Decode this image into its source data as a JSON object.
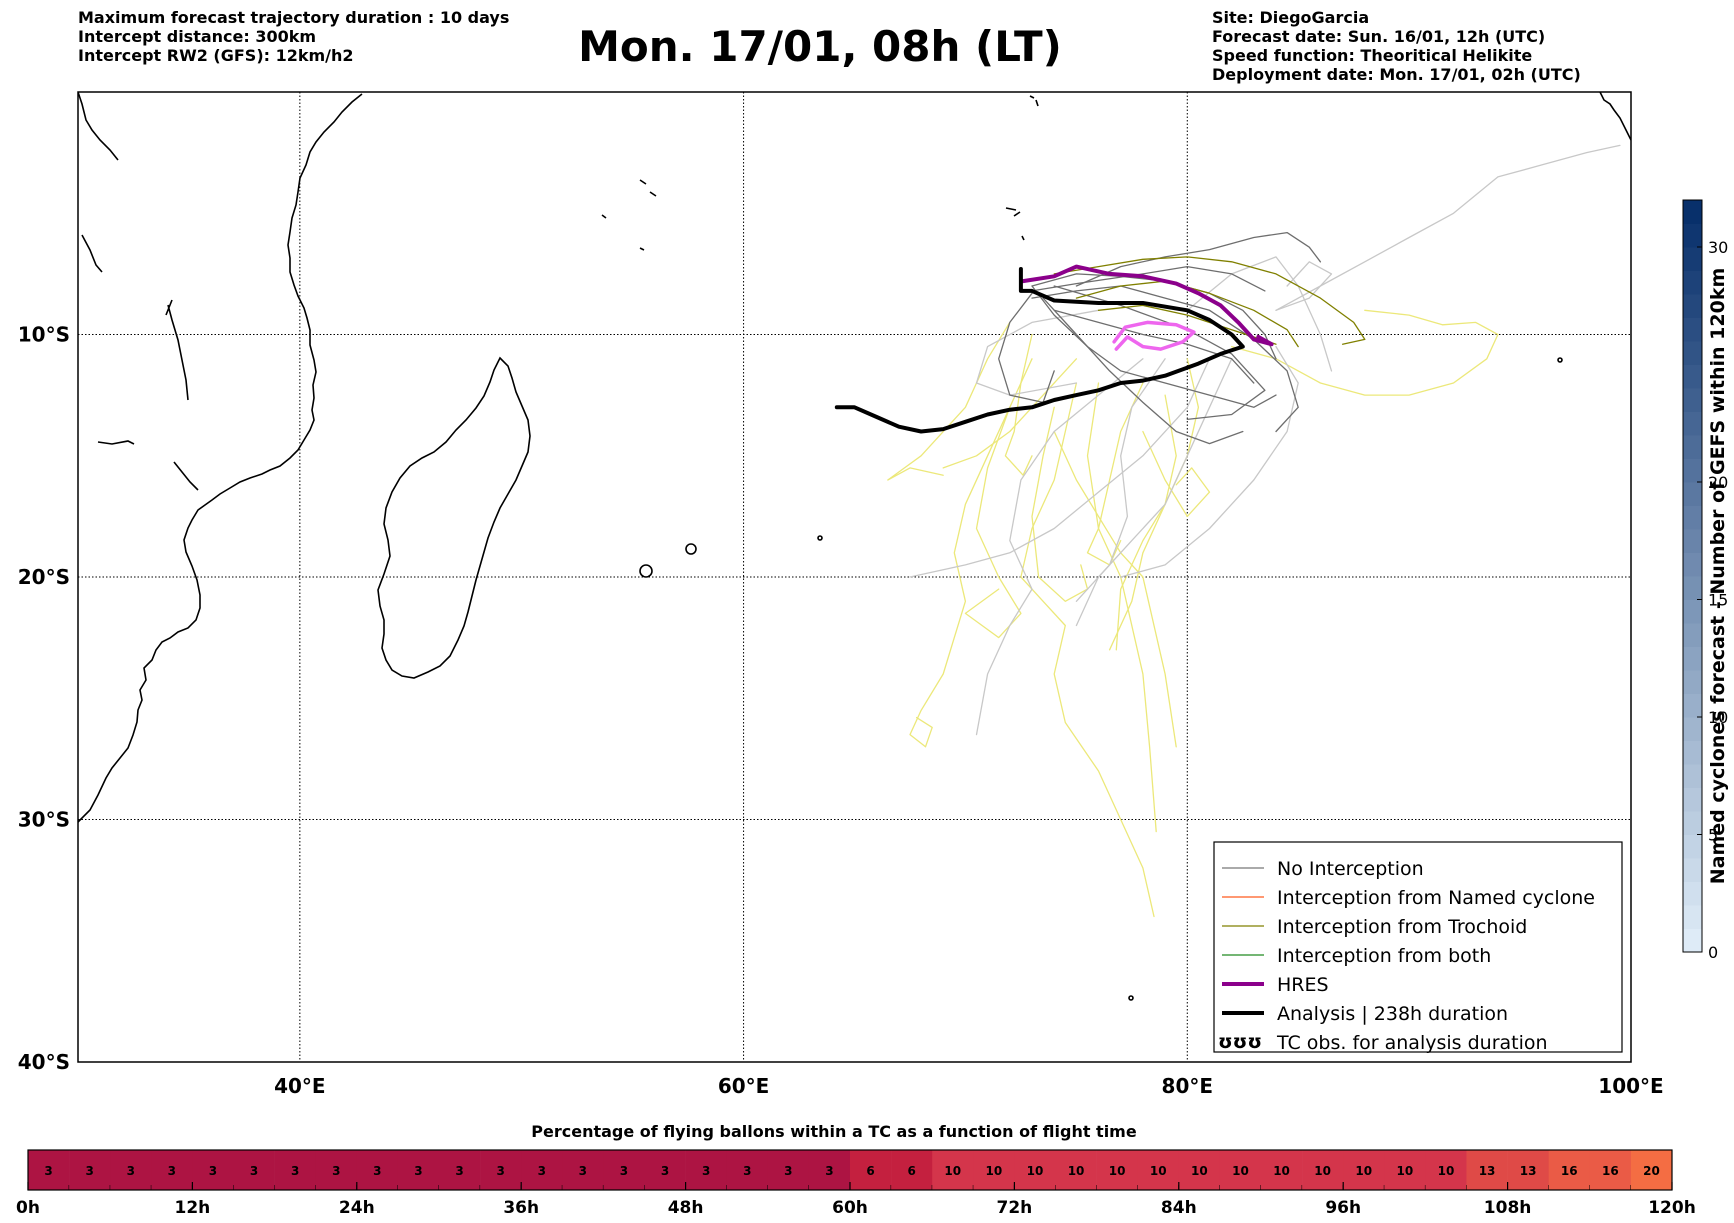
{
  "header": {
    "left_lines": [
      "Maximum forecast trajectory duration : 10 days",
      "Intercept distance: 300km",
      "Intercept RW2 (GFS):  12km/h2"
    ],
    "title": "Mon. 17/01, 08h (LT)",
    "right_lines": [
      "Site: DiegoGarcia",
      "Forecast date: Sun. 16/01, 12h (UTC)",
      "Speed function: Theoritical Helikite",
      "Deployment date: Mon. 17/01, 02h (UTC)"
    ]
  },
  "map": {
    "lon_range": [
      30,
      100
    ],
    "lat_range": [
      0,
      -40
    ],
    "lat_labels": [
      {
        "lat": -10,
        "text": "10°S"
      },
      {
        "lat": -20,
        "text": "20°S"
      },
      {
        "lat": -30,
        "text": "30°S"
      },
      {
        "lat": -40,
        "text": "40°S"
      }
    ],
    "lon_labels": [
      {
        "lon": 40,
        "text": "40°E"
      },
      {
        "lon": 60,
        "text": "60°E"
      },
      {
        "lon": 80,
        "text": "80°E"
      },
      {
        "lon": 100,
        "text": "100°E"
      }
    ],
    "colors": {
      "no_interception": "#555555",
      "no_interception_light": "#c8c8c8",
      "named_cyclone": "#ff5a1f",
      "trochoid": "#808000",
      "both": "#228b22",
      "hres": "#8b008b",
      "hres_secondary": "#ee66ee",
      "analysis": "#000000",
      "yellow_tracks": "#ece87a"
    }
  },
  "legend": {
    "items": [
      {
        "label": "No Interception",
        "color": "#777777",
        "width": 1.2
      },
      {
        "label": "Interception from Named cyclone",
        "color": "#ff5a1f",
        "width": 1.2
      },
      {
        "label": "Interception from Trochoid",
        "color": "#808000",
        "width": 1.2
      },
      {
        "label": "Interception from both",
        "color": "#228b22",
        "width": 1.2
      },
      {
        "label": "HRES",
        "color": "#8b008b",
        "width": 4
      },
      {
        "label": "Analysis | 238h duration",
        "color": "#000000",
        "width": 4
      },
      {
        "label": "TC obs. for analysis duration",
        "glyph": "ʊʊʊ",
        "color": "#000000",
        "width": 0
      }
    ]
  },
  "colorbar": {
    "title": "Named cyclones forecast - Number of GEFS within 120km",
    "range": [
      0,
      32
    ],
    "ticks": [
      0,
      5,
      10,
      15,
      20,
      30
    ],
    "tick_labels": [
      "0",
      "5",
      "10",
      "15",
      "20",
      "30"
    ],
    "colors": [
      "#deebf7",
      "#08306b"
    ]
  },
  "strip": {
    "title": "Percentage of flying ballons within a TC as a function of flight time",
    "values": [
      3,
      3,
      3,
      3,
      3,
      3,
      3,
      3,
      3,
      3,
      3,
      3,
      3,
      3,
      3,
      3,
      3,
      3,
      3,
      3,
      6,
      6,
      10,
      10,
      10,
      10,
      10,
      10,
      10,
      10,
      10,
      10,
      10,
      10,
      10,
      13,
      13,
      16,
      16,
      20
    ],
    "colors": {
      "3": "#ad1443",
      "6": "#c4203f",
      "10": "#d4354b",
      "13": "#df4a47",
      "16": "#ea5b46",
      "20": "#f46d43"
    },
    "tick_labels": [
      "0h",
      "12h",
      "24h",
      "36h",
      "48h",
      "60h",
      "72h",
      "84h",
      "96h",
      "108h",
      "120h"
    ]
  }
}
